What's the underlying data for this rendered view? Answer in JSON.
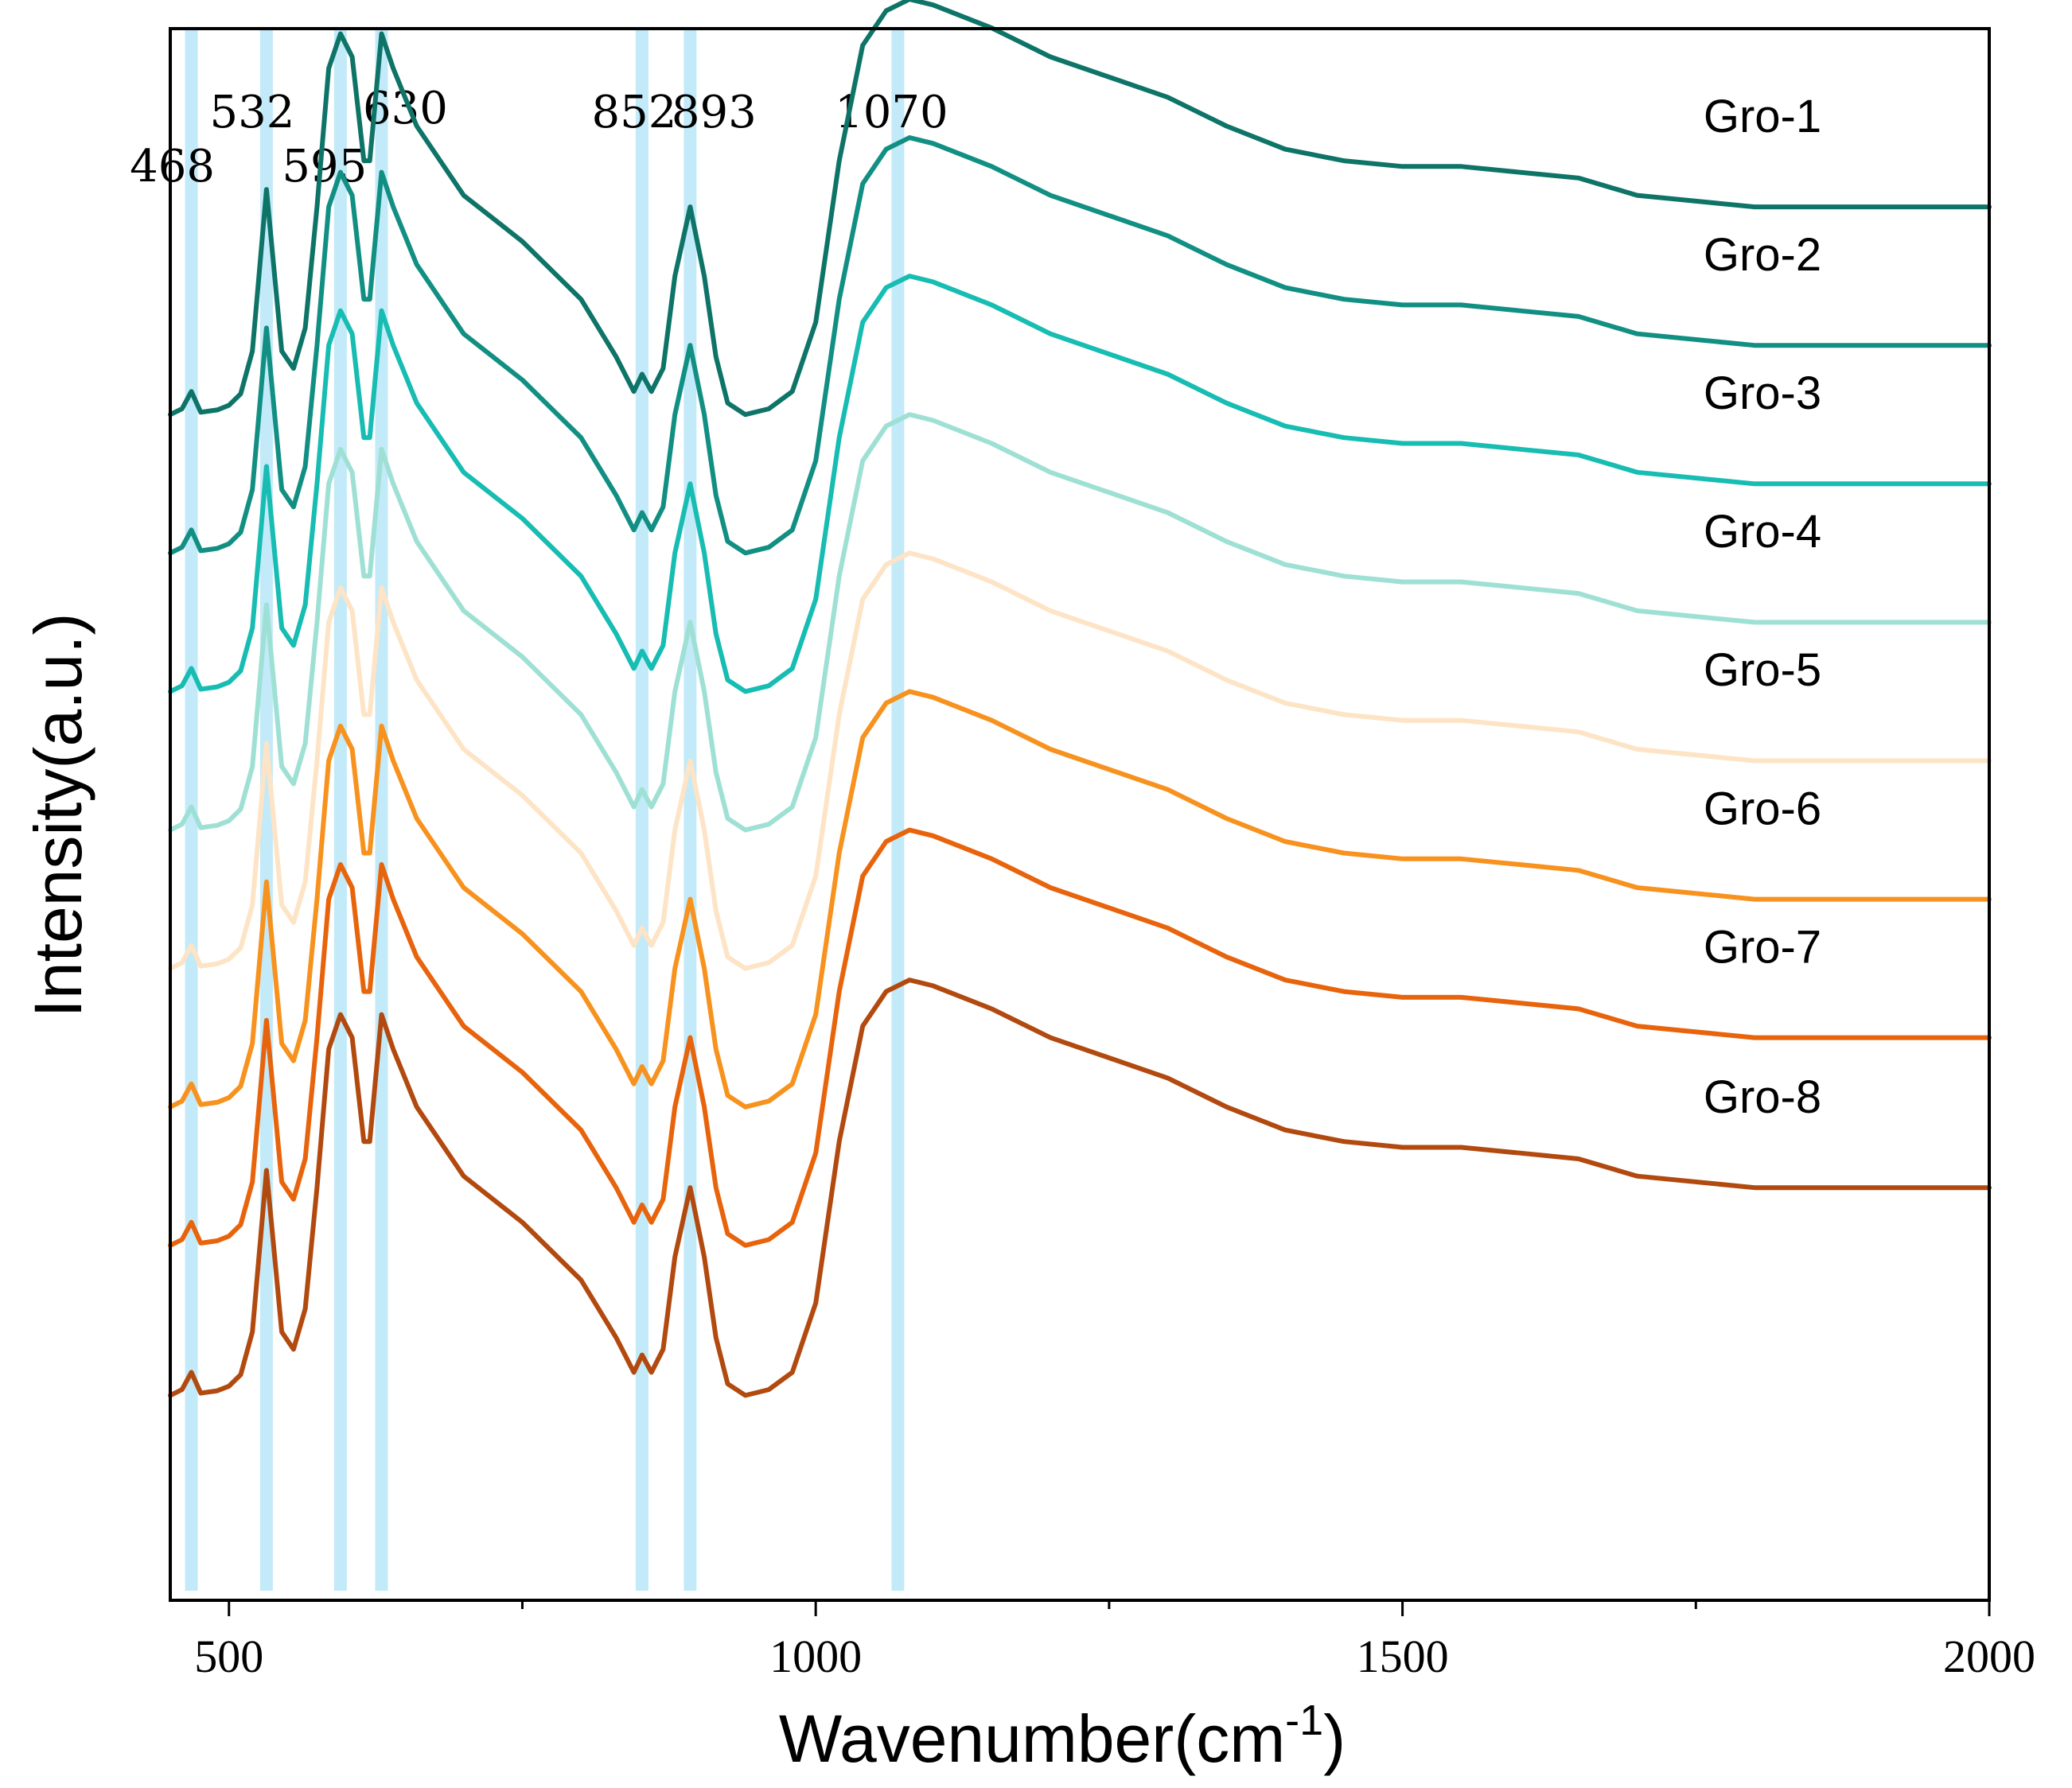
{
  "chart_data": {
    "type": "line",
    "title": "",
    "xlabel": "Wavenumber(cm",
    "xlabel_sup": "-1",
    "xlabel_close": ")",
    "ylabel": "Intensity(a.u.)",
    "xlim": [
      450,
      2000
    ],
    "x_ticks": [
      500,
      1000,
      1500,
      2000
    ],
    "x_tick_labels": [
      "500",
      "1000",
      "1500",
      "2000"
    ],
    "x_minor_ticks": [
      750,
      1250,
      1750
    ],
    "y_ticks_shown": false,
    "ylim": [
      0,
      13
    ],
    "peak_markers": [
      {
        "x": 468,
        "label": "468"
      },
      {
        "x": 532,
        "label": "532"
      },
      {
        "x": 595,
        "label": "595"
      },
      {
        "x": 630,
        "label": "630"
      },
      {
        "x": 852,
        "label": "852"
      },
      {
        "x": 893,
        "label": "893"
      },
      {
        "x": 1070,
        "label": "1070"
      }
    ],
    "x": [
      450,
      460,
      468,
      476,
      490,
      500,
      510,
      520,
      532,
      545,
      555,
      565,
      575,
      585,
      595,
      605,
      615,
      620,
      630,
      640,
      660,
      700,
      750,
      800,
      830,
      845,
      852,
      860,
      870,
      880,
      893,
      905,
      915,
      925,
      940,
      960,
      980,
      1000,
      1020,
      1040,
      1060,
      1080,
      1100,
      1150,
      1200,
      1300,
      1350,
      1400,
      1450,
      1500,
      1550,
      1600,
      1650,
      1700,
      1800,
      2000
    ],
    "series": [
      {
        "name": "Gro-1",
        "color": "#0e7468",
        "values": [
          0.0,
          0.05,
          0.2,
          0.02,
          0.04,
          0.08,
          0.18,
          0.55,
          1.95,
          0.55,
          0.4,
          0.75,
          1.8,
          3.0,
          3.3,
          3.1,
          2.2,
          2.2,
          3.3,
          3.0,
          2.5,
          1.9,
          1.5,
          1.0,
          0.5,
          0.2,
          0.35,
          0.2,
          0.4,
          1.2,
          1.8,
          1.2,
          0.5,
          0.1,
          0.0,
          0.05,
          0.2,
          0.8,
          2.2,
          3.2,
          3.5,
          3.6,
          3.55,
          3.35,
          3.1,
          2.75,
          2.5,
          2.3,
          2.2,
          2.15,
          2.15,
          2.1,
          2.05,
          1.9,
          1.8,
          1.8
        ]
      },
      {
        "name": "Gro-2",
        "color": "#128f83",
        "values": [
          0.0,
          0.05,
          0.2,
          0.02,
          0.04,
          0.08,
          0.18,
          0.55,
          1.95,
          0.55,
          0.4,
          0.75,
          1.8,
          3.0,
          3.3,
          3.1,
          2.2,
          2.2,
          3.3,
          3.0,
          2.5,
          1.9,
          1.5,
          1.0,
          0.5,
          0.2,
          0.35,
          0.2,
          0.4,
          1.2,
          1.8,
          1.2,
          0.5,
          0.1,
          0.0,
          0.05,
          0.2,
          0.8,
          2.2,
          3.2,
          3.5,
          3.6,
          3.55,
          3.35,
          3.1,
          2.75,
          2.5,
          2.3,
          2.2,
          2.15,
          2.15,
          2.1,
          2.05,
          1.9,
          1.8,
          1.8
        ]
      },
      {
        "name": "Gro-3",
        "color": "#17bcb2",
        "values": [
          0.0,
          0.05,
          0.2,
          0.02,
          0.04,
          0.08,
          0.18,
          0.55,
          1.95,
          0.55,
          0.4,
          0.75,
          1.8,
          3.0,
          3.3,
          3.1,
          2.2,
          2.2,
          3.3,
          3.0,
          2.5,
          1.9,
          1.5,
          1.0,
          0.5,
          0.2,
          0.35,
          0.2,
          0.4,
          1.2,
          1.8,
          1.2,
          0.5,
          0.1,
          0.0,
          0.05,
          0.2,
          0.8,
          2.2,
          3.2,
          3.5,
          3.6,
          3.55,
          3.35,
          3.1,
          2.75,
          2.5,
          2.3,
          2.2,
          2.15,
          2.15,
          2.1,
          2.05,
          1.9,
          1.8,
          1.8
        ]
      },
      {
        "name": "Gro-4",
        "color": "#9fe0d5",
        "values": [
          0.0,
          0.05,
          0.2,
          0.02,
          0.04,
          0.08,
          0.18,
          0.55,
          1.95,
          0.55,
          0.4,
          0.75,
          1.8,
          3.0,
          3.3,
          3.1,
          2.2,
          2.2,
          3.3,
          3.0,
          2.5,
          1.9,
          1.5,
          1.0,
          0.5,
          0.2,
          0.35,
          0.2,
          0.4,
          1.2,
          1.8,
          1.2,
          0.5,
          0.1,
          0.0,
          0.05,
          0.2,
          0.8,
          2.2,
          3.2,
          3.5,
          3.6,
          3.55,
          3.35,
          3.1,
          2.75,
          2.5,
          2.3,
          2.2,
          2.15,
          2.15,
          2.1,
          2.05,
          1.9,
          1.8,
          1.8
        ]
      },
      {
        "name": "Gro-5",
        "color": "#fde4c6",
        "values": [
          0.0,
          0.05,
          0.2,
          0.02,
          0.04,
          0.08,
          0.18,
          0.55,
          1.95,
          0.55,
          0.4,
          0.75,
          1.8,
          3.0,
          3.3,
          3.1,
          2.2,
          2.2,
          3.3,
          3.0,
          2.5,
          1.9,
          1.5,
          1.0,
          0.5,
          0.2,
          0.35,
          0.2,
          0.4,
          1.2,
          1.8,
          1.2,
          0.5,
          0.1,
          0.0,
          0.05,
          0.2,
          0.8,
          2.2,
          3.2,
          3.5,
          3.6,
          3.55,
          3.35,
          3.1,
          2.75,
          2.5,
          2.3,
          2.2,
          2.15,
          2.15,
          2.1,
          2.05,
          1.9,
          1.8,
          1.8
        ]
      },
      {
        "name": "Gro-6",
        "color": "#f7921e",
        "values": [
          0.0,
          0.05,
          0.2,
          0.02,
          0.04,
          0.08,
          0.18,
          0.55,
          1.95,
          0.55,
          0.4,
          0.75,
          1.8,
          3.0,
          3.3,
          3.1,
          2.2,
          2.2,
          3.3,
          3.0,
          2.5,
          1.9,
          1.5,
          1.0,
          0.5,
          0.2,
          0.35,
          0.2,
          0.4,
          1.2,
          1.8,
          1.2,
          0.5,
          0.1,
          0.0,
          0.05,
          0.2,
          0.8,
          2.2,
          3.2,
          3.5,
          3.6,
          3.55,
          3.35,
          3.1,
          2.75,
          2.5,
          2.3,
          2.2,
          2.15,
          2.15,
          2.1,
          2.05,
          1.9,
          1.8,
          1.8
        ]
      },
      {
        "name": "Gro-7",
        "color": "#e8640c",
        "values": [
          0.0,
          0.05,
          0.2,
          0.02,
          0.04,
          0.08,
          0.18,
          0.55,
          1.95,
          0.55,
          0.4,
          0.75,
          1.8,
          3.0,
          3.3,
          3.1,
          2.2,
          2.2,
          3.3,
          3.0,
          2.5,
          1.9,
          1.5,
          1.0,
          0.5,
          0.2,
          0.35,
          0.2,
          0.4,
          1.2,
          1.8,
          1.2,
          0.5,
          0.1,
          0.0,
          0.05,
          0.2,
          0.8,
          2.2,
          3.2,
          3.5,
          3.6,
          3.55,
          3.35,
          3.1,
          2.75,
          2.5,
          2.3,
          2.2,
          2.15,
          2.15,
          2.1,
          2.05,
          1.9,
          1.8,
          1.8
        ]
      },
      {
        "name": "Gro-8",
        "color": "#b24a10",
        "values": [
          0.0,
          0.05,
          0.2,
          0.02,
          0.04,
          0.08,
          0.18,
          0.55,
          1.95,
          0.55,
          0.4,
          0.75,
          1.8,
          3.0,
          3.3,
          3.1,
          2.2,
          2.2,
          3.3,
          3.0,
          2.5,
          1.9,
          1.5,
          1.0,
          0.5,
          0.2,
          0.35,
          0.2,
          0.4,
          1.2,
          1.8,
          1.2,
          0.5,
          0.1,
          0.0,
          0.05,
          0.2,
          0.8,
          2.2,
          3.2,
          3.5,
          3.6,
          3.55,
          3.35,
          3.1,
          2.75,
          2.5,
          2.3,
          2.2,
          2.15,
          2.15,
          2.1,
          2.05,
          1.9,
          1.8,
          1.8
        ]
      }
    ],
    "series_offsets": [
      10.0,
      8.8,
      7.6,
      6.4,
      5.2,
      4.0,
      2.8,
      1.5
    ],
    "legend": "right, labels beside each trace"
  }
}
